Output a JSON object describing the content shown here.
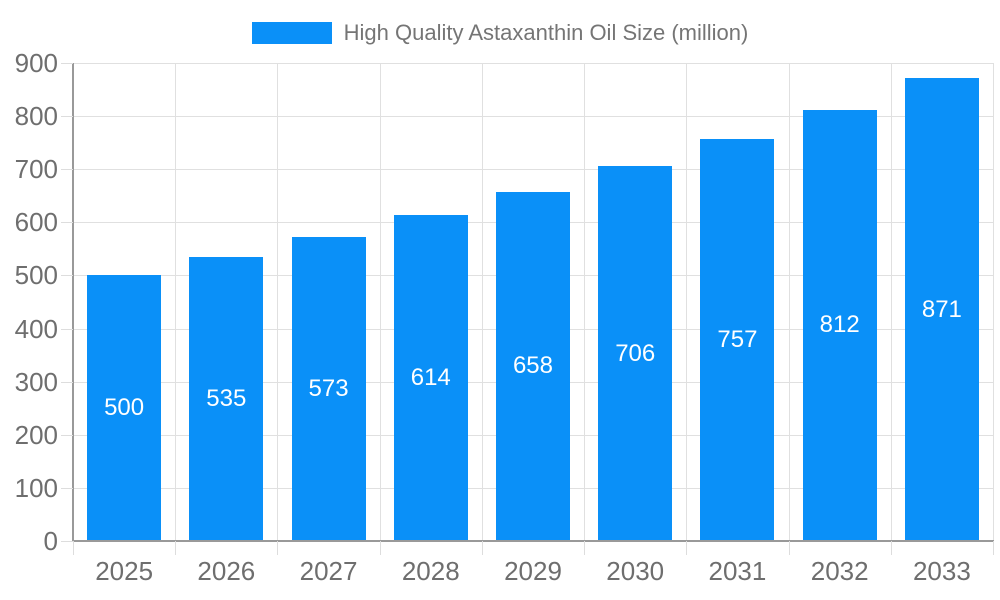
{
  "legend": {
    "label": "High Quality Astaxanthin Oil Size (million)"
  },
  "chart_data": {
    "type": "bar",
    "title": "",
    "xlabel": "",
    "ylabel": "",
    "categories": [
      "2025",
      "2026",
      "2027",
      "2028",
      "2029",
      "2030",
      "2031",
      "2032",
      "2033"
    ],
    "series": [
      {
        "name": "High Quality Astaxanthin Oil Size (million)",
        "values": [
          500,
          535,
          573,
          614,
          658,
          706,
          757,
          812,
          871
        ]
      }
    ],
    "bar_value_labels": [
      "500",
      "535",
      "573",
      "614",
      "658",
      "706",
      "757",
      "812",
      "871"
    ],
    "ylim": [
      0,
      900
    ],
    "yticks": [
      0,
      100,
      200,
      300,
      400,
      500,
      600,
      700,
      800,
      900
    ],
    "grid": true,
    "legend_position": "top-center",
    "bar_color": "#0a90f8",
    "bar_label_color": "#ffffff",
    "axis_label_color": "#6e6e6e",
    "grid_color": "#e0e0e0",
    "axis_line_color": "#999999"
  }
}
